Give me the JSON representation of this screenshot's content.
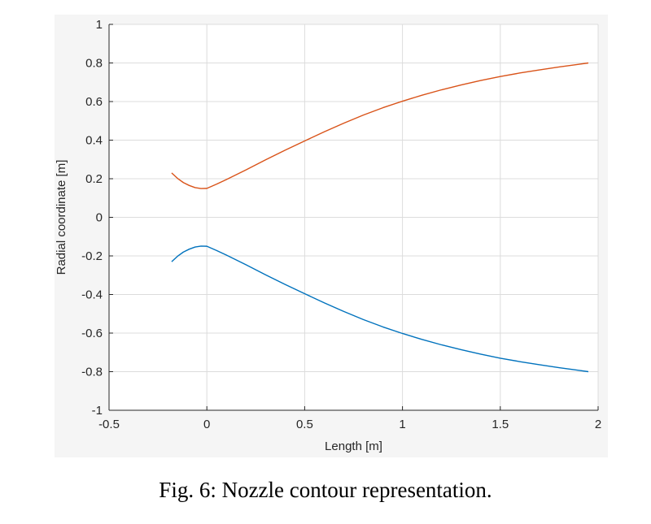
{
  "caption": "Fig. 6: Nozzle contour representation.",
  "colors": {
    "series_upper": "#d95319",
    "series_lower": "#0072bd",
    "grid": "#dcdcdc",
    "axis": "#262626",
    "plot_background": "#ffffff",
    "panel_background": "#f5f5f5"
  },
  "chart_data": {
    "type": "line",
    "title": "",
    "xlabel": "Length [m]",
    "ylabel": "Radial coordinate [m]",
    "xlim": [
      -0.5,
      2
    ],
    "ylim": [
      -1,
      1
    ],
    "xticks": [
      -0.5,
      0,
      0.5,
      1,
      1.5,
      2
    ],
    "xtick_labels": [
      "-0.5",
      "0",
      "0.5",
      "1",
      "1.5",
      "2"
    ],
    "yticks": [
      -1,
      -0.8,
      -0.6,
      -0.4,
      -0.2,
      0,
      0.2,
      0.4,
      0.6,
      0.8,
      1
    ],
    "ytick_labels": [
      "-1",
      "-0.8",
      "-0.6",
      "-0.4",
      "-0.2",
      "0",
      "0.2",
      "0.4",
      "0.6",
      "0.8",
      "1"
    ],
    "grid": true,
    "series": [
      {
        "color": "#d95319",
        "x": [
          -0.18,
          -0.15,
          -0.12,
          -0.09,
          -0.06,
          -0.03,
          0,
          0.05,
          0.1,
          0.2,
          0.3,
          0.4,
          0.5,
          0.6,
          0.7,
          0.8,
          0.9,
          1.0,
          1.1,
          1.2,
          1.3,
          1.4,
          1.5,
          1.6,
          1.7,
          1.8,
          1.9,
          1.95
        ],
        "y": [
          0.23,
          0.202,
          0.18,
          0.165,
          0.154,
          0.149,
          0.15,
          0.172,
          0.196,
          0.246,
          0.298,
          0.348,
          0.396,
          0.443,
          0.488,
          0.53,
          0.568,
          0.602,
          0.633,
          0.661,
          0.686,
          0.709,
          0.73,
          0.748,
          0.764,
          0.779,
          0.793,
          0.8
        ]
      },
      {
        "color": "#0072bd",
        "x": [
          -0.18,
          -0.15,
          -0.12,
          -0.09,
          -0.06,
          -0.03,
          0,
          0.05,
          0.1,
          0.2,
          0.3,
          0.4,
          0.5,
          0.6,
          0.7,
          0.8,
          0.9,
          1.0,
          1.1,
          1.2,
          1.3,
          1.4,
          1.5,
          1.6,
          1.7,
          1.8,
          1.9,
          1.95
        ],
        "y": [
          -0.23,
          -0.202,
          -0.18,
          -0.165,
          -0.154,
          -0.149,
          -0.15,
          -0.172,
          -0.196,
          -0.246,
          -0.298,
          -0.348,
          -0.396,
          -0.443,
          -0.488,
          -0.53,
          -0.568,
          -0.602,
          -0.633,
          -0.661,
          -0.686,
          -0.709,
          -0.73,
          -0.748,
          -0.764,
          -0.779,
          -0.793,
          -0.8
        ]
      }
    ]
  }
}
